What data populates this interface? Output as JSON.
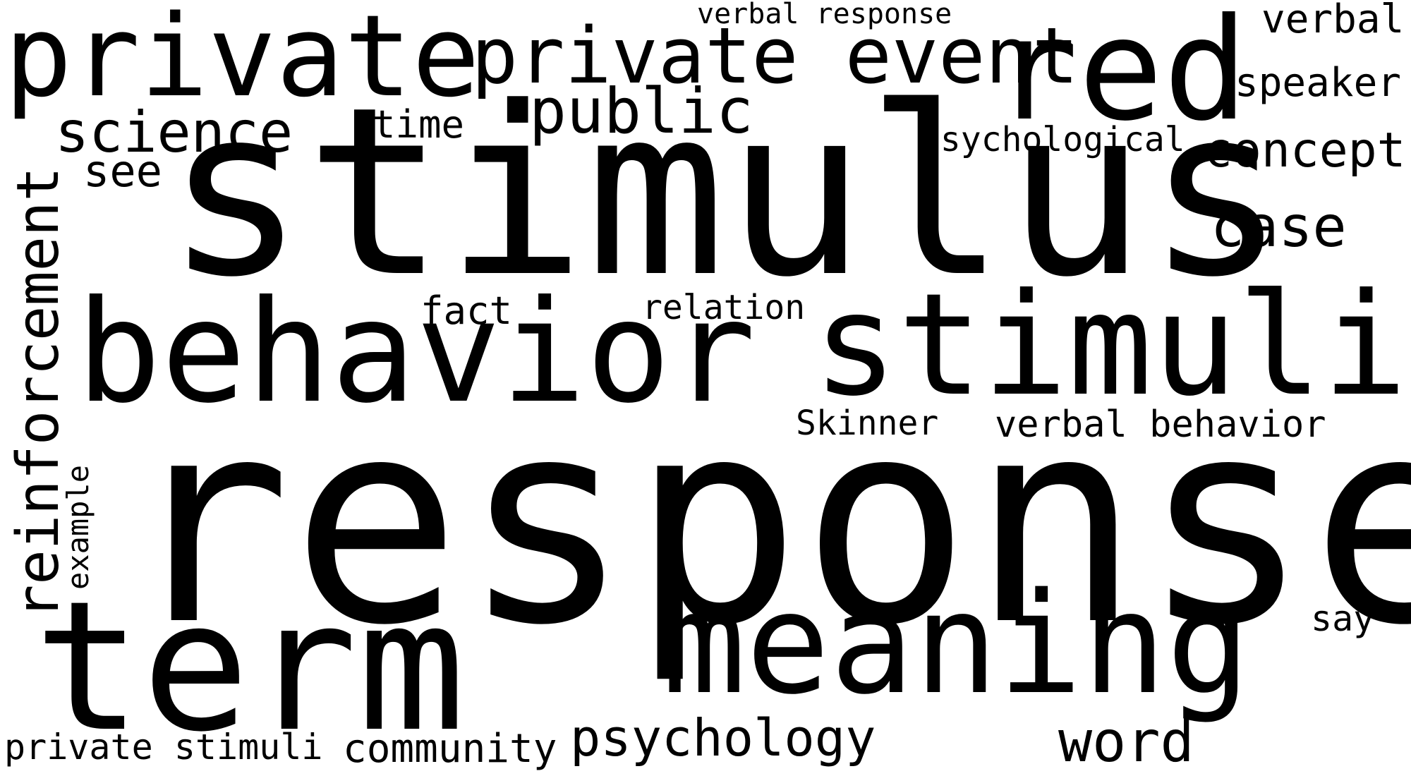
{
  "word_cloud": {
    "words": {
      "response": "response",
      "stimulus": "stimulus",
      "behavior": "behavior",
      "stimuli": "stimuli",
      "term": "term",
      "meaning": "meaning",
      "red": "red",
      "private": "private",
      "private_event": "private event",
      "public": "public",
      "science": "science",
      "see": "see",
      "time": "time",
      "psychological": "psychological",
      "concept": "concept",
      "case": "case",
      "speaker": "speaker",
      "verbal": "verbal",
      "verbal_response": "verbal response",
      "fact": "fact",
      "relation": "relation",
      "skinner": "Skinner",
      "verbal_behavior": "verbal behavior",
      "say": "say",
      "word": "word",
      "psychology": "psychology",
      "community": "community",
      "private_stimuli": "private stimuli",
      "reinforcement": "reinforcement",
      "example": "example"
    },
    "colors": {
      "background": "#ffffff",
      "text": "#000000"
    }
  }
}
